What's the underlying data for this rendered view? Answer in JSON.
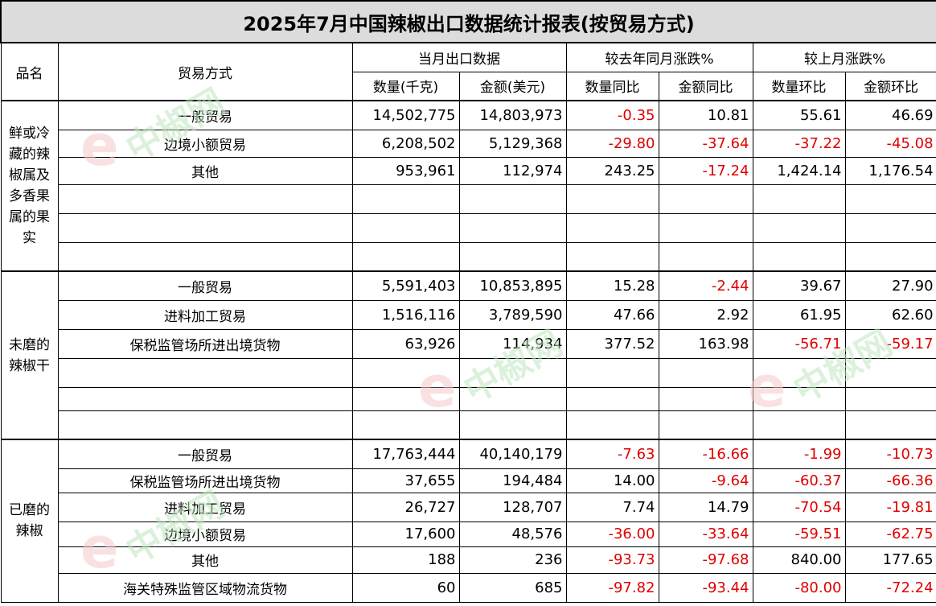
{
  "title": "2025年7月中国辣椒出口数据统计报表(按贸易方式)",
  "header": {
    "product": "品名",
    "trade_mode": "贸易方式",
    "month_export": "当月出口数据",
    "yoy": "较去年同月涨跌%",
    "mom": "较上月涨跌%",
    "qty": "数量(千克)",
    "amount": "金额(美元)",
    "qty_yoy": "数量同比",
    "amt_yoy": "金额同比",
    "qty_mom": "数量环比",
    "amt_mom": "金额环比"
  },
  "groups": [
    {
      "product": "鲜或冷藏的辣椒属及多香果属的果实",
      "rows": [
        {
          "mode": "一般贸易",
          "qty": "14,502,775",
          "amount": "14,803,973",
          "qty_yoy": "-0.35",
          "amt_yoy": "10.81",
          "qty_mom": "55.61",
          "amt_mom": "46.69"
        },
        {
          "mode": "边境小额贸易",
          "qty": "6,208,502",
          "amount": "5,129,368",
          "qty_yoy": "-29.80",
          "amt_yoy": "-37.64",
          "qty_mom": "-37.22",
          "amt_mom": "-45.08"
        },
        {
          "mode": "其他",
          "qty": "953,961",
          "amount": "112,974",
          "qty_yoy": "243.25",
          "amt_yoy": "-17.24",
          "qty_mom": "1,424.14",
          "amt_mom": "1,176.54"
        }
      ]
    },
    {
      "product": "未磨的辣椒干",
      "rows": [
        {
          "mode": "一般贸易",
          "qty": "5,591,403",
          "amount": "10,853,895",
          "qty_yoy": "15.28",
          "amt_yoy": "-2.44",
          "qty_mom": "39.67",
          "amt_mom": "27.90"
        },
        {
          "mode": "进料加工贸易",
          "qty": "1,516,116",
          "amount": "3,789,590",
          "qty_yoy": "47.66",
          "amt_yoy": "2.92",
          "qty_mom": "61.95",
          "amt_mom": "62.60"
        },
        {
          "mode": "保税监管场所进出境货物",
          "qty": "63,926",
          "amount": "114,934",
          "qty_yoy": "377.52",
          "amt_yoy": "163.98",
          "qty_mom": "-56.71",
          "amt_mom": "-59.17"
        }
      ]
    },
    {
      "product": "已磨的辣椒",
      "rows": [
        {
          "mode": "一般贸易",
          "qty": "17,763,444",
          "amount": "40,140,179",
          "qty_yoy": "-7.63",
          "amt_yoy": "-16.66",
          "qty_mom": "-1.99",
          "amt_mom": "-10.73"
        },
        {
          "mode": "保税监管场所进出境货物",
          "qty": "37,655",
          "amount": "194,484",
          "qty_yoy": "14.00",
          "amt_yoy": "-9.64",
          "qty_mom": "-60.37",
          "amt_mom": "-66.36"
        },
        {
          "mode": "进料加工贸易",
          "qty": "26,727",
          "amount": "128,707",
          "qty_yoy": "7.74",
          "amt_yoy": "14.79",
          "qty_mom": "-70.54",
          "amt_mom": "-19.81"
        },
        {
          "mode": "边境小额贸易",
          "qty": "17,600",
          "amount": "48,576",
          "qty_yoy": "-36.00",
          "amt_yoy": "-33.64",
          "qty_mom": "-59.51",
          "amt_mom": "-62.75"
        },
        {
          "mode": "其他",
          "qty": "188",
          "amount": "236",
          "qty_yoy": "-93.73",
          "amt_yoy": "-97.68",
          "qty_mom": "840.00",
          "amt_mom": "177.65"
        },
        {
          "mode": "海关特殊监管区域物流货物",
          "qty": "60",
          "amount": "685",
          "qty_yoy": "-97.82",
          "amt_yoy": "-93.44",
          "qty_mom": "-80.00",
          "amt_mom": "-72.24"
        }
      ]
    }
  ],
  "watermark": {
    "brand_text": "中椒网",
    "letter": "e"
  },
  "colors": {
    "negative": "#e00000",
    "title_bg": "#dcdcdc",
    "watermark_green": "#bfe6bf",
    "watermark_red": "#f7c9c9"
  }
}
